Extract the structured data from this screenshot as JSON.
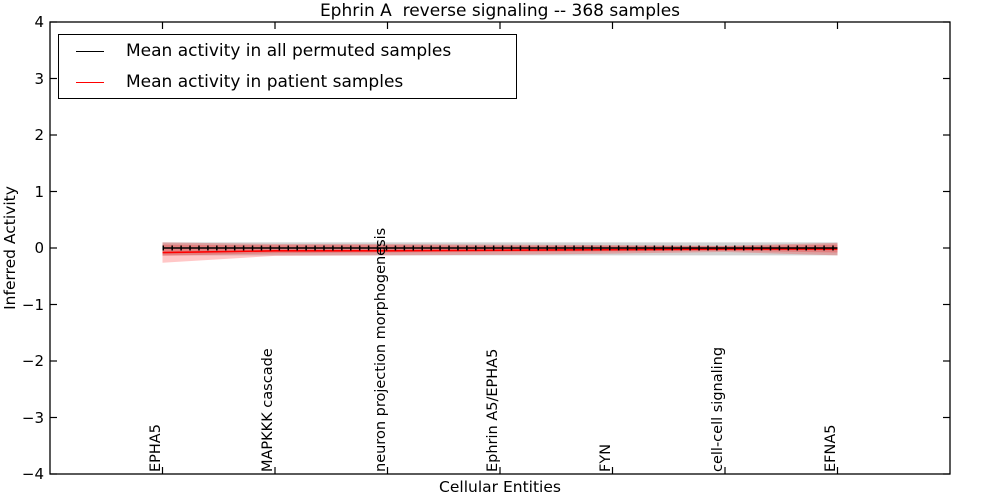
{
  "chart_data": {
    "type": "line",
    "title": "Ephrin A  reverse signaling -- 368 samples",
    "xlabel": "Cellular Entities",
    "ylabel": "Inferred Activity",
    "ylim": [
      -4,
      4
    ],
    "yticks": [
      -4,
      -3,
      -2,
      -1,
      0,
      1,
      2,
      3,
      4
    ],
    "grid": false,
    "legend_position": "upper left",
    "categories": [
      "EPHA5",
      "MAPKKK cascade",
      "neuron projection morphogenesis",
      "Ephrin A5/EPHA5",
      "FYN",
      "cell-cell signaling",
      "EFNA5"
    ],
    "series": [
      {
        "name": "Mean activity in all permuted samples",
        "color": "#000000",
        "marker": "plus",
        "values": [
          0,
          0,
          0,
          0,
          0,
          0,
          0
        ],
        "band_upper": [
          0.1,
          0.1,
          0.1,
          0.1,
          0.1,
          0.1,
          0.1
        ],
        "band_lower": [
          -0.13,
          -0.13,
          -0.13,
          -0.13,
          -0.13,
          -0.13,
          -0.13
        ],
        "band_color": "#999999",
        "band_opacity": 0.45
      },
      {
        "name": "Mean activity in patient samples",
        "color": "#ff0000",
        "marker": "none",
        "values": [
          -0.08,
          -0.05,
          -0.05,
          -0.04,
          -0.03,
          -0.02,
          -0.02
        ],
        "band_upper": [
          0.1,
          0.07,
          0.07,
          0.06,
          0.05,
          0.04,
          0.09
        ],
        "band_lower": [
          -0.26,
          -0.14,
          -0.13,
          -0.12,
          -0.1,
          -0.07,
          -0.13
        ],
        "inner_band_upper": [
          0.06,
          0.05,
          0.05,
          0.04,
          0.04,
          0.03,
          0.06
        ],
        "inner_band_lower": [
          -0.14,
          -0.09,
          -0.08,
          -0.07,
          -0.06,
          -0.05,
          -0.08
        ],
        "band_color": "#ff0000",
        "band_opacity": 0.22
      }
    ]
  }
}
